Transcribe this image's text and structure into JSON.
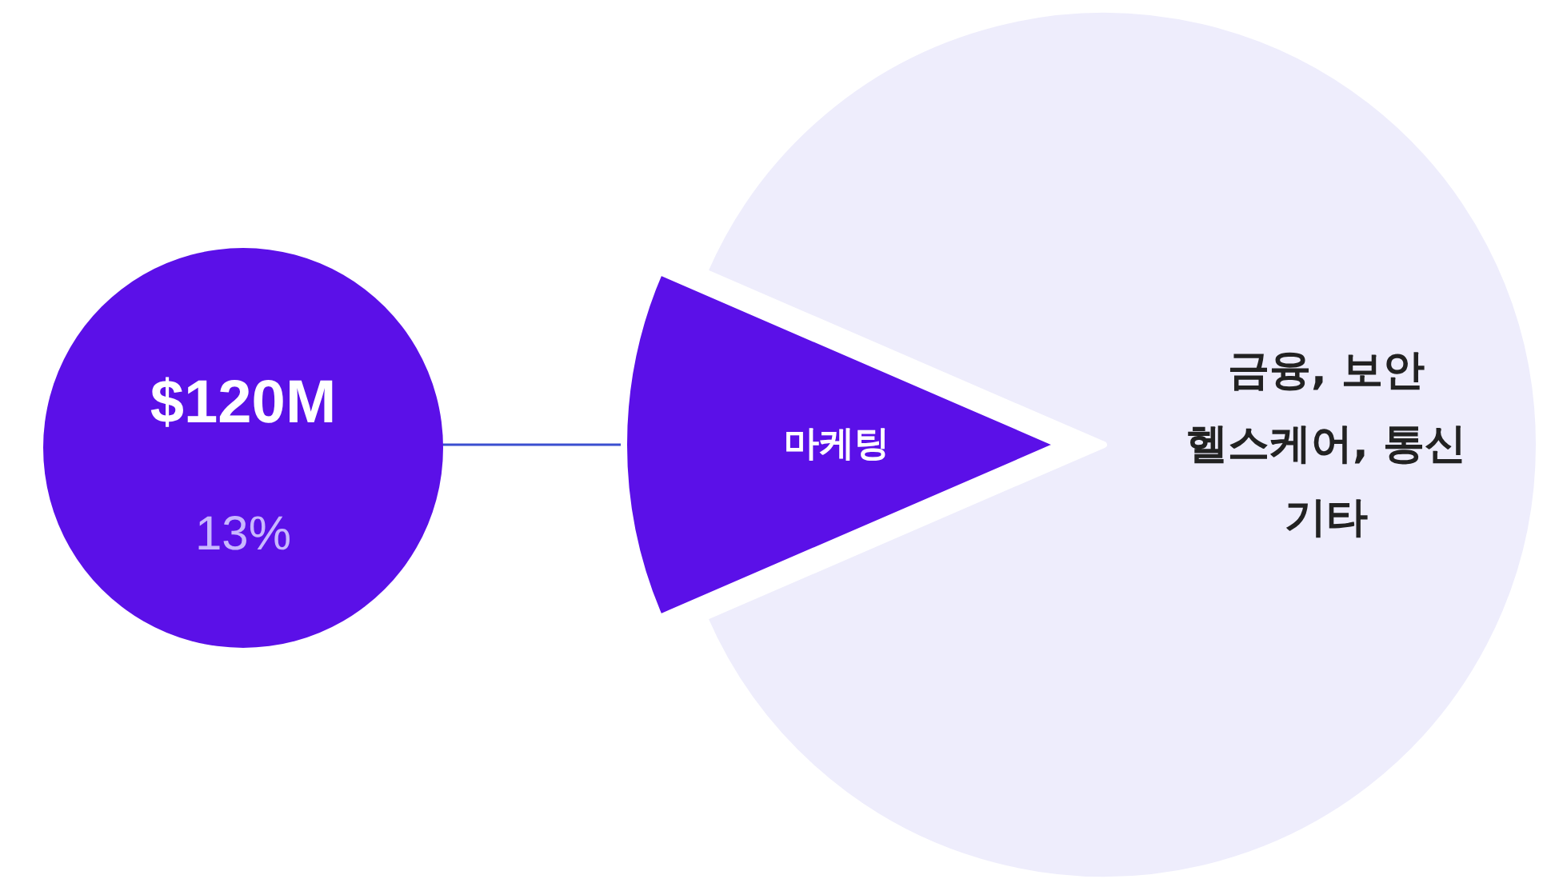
{
  "chart_data": {
    "type": "pie",
    "categories": [
      "마케팅",
      "금융, 보안\n헬스케어, 통신\n기타"
    ],
    "values": [
      13,
      87
    ],
    "colors": [
      "#5b10e8",
      "#eeedfc"
    ],
    "annotations": [
      "$120M",
      "13%"
    ]
  }
}
